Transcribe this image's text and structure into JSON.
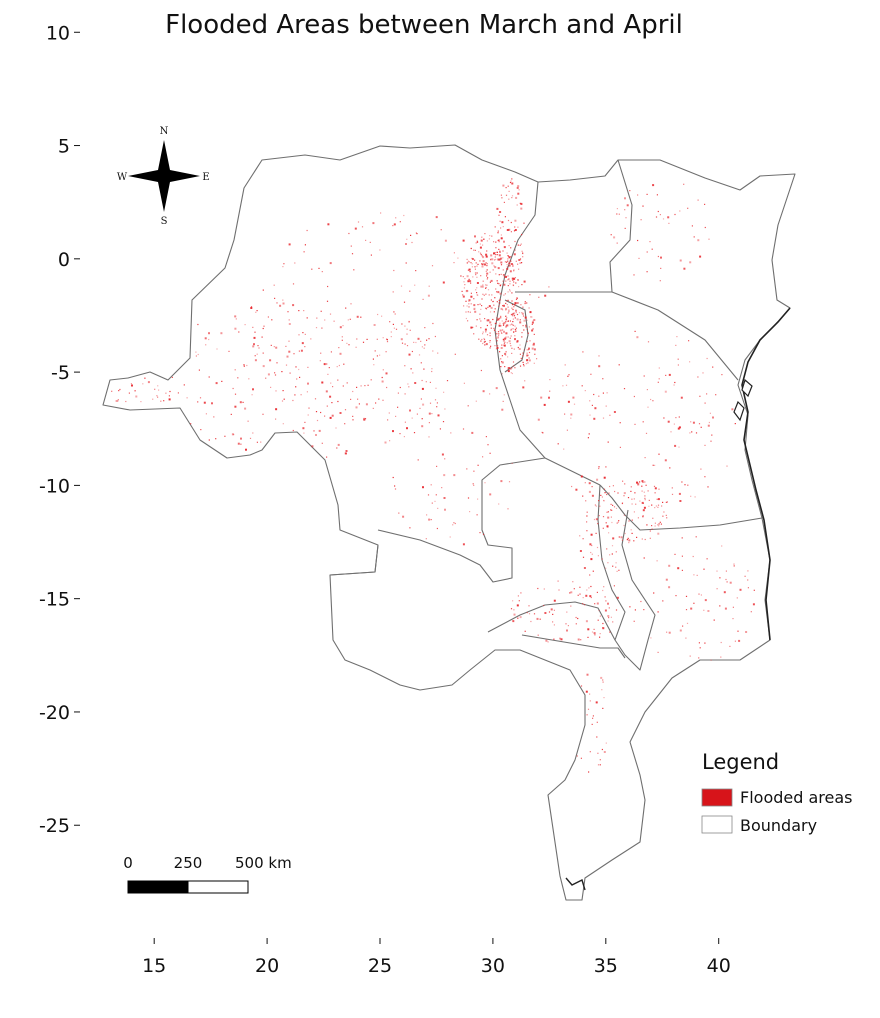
{
  "title": "Flooded Areas between March and April",
  "axes": {
    "x": {
      "range": [
        12.6,
        43.6
      ],
      "ticks": [
        15,
        20,
        25,
        30,
        35,
        40
      ],
      "labels": [
        "15",
        "20",
        "25",
        "30",
        "35",
        "40"
      ]
    },
    "y": {
      "range": [
        -28.3,
        10.1
      ],
      "ticks": [
        10,
        5,
        0,
        -5,
        -10,
        -15,
        -20,
        -25
      ],
      "labels": [
        "10",
        "5",
        "0",
        "-5",
        "-10",
        "-15",
        "-20",
        "-25"
      ]
    },
    "grid": false
  },
  "compass": {
    "n": "N",
    "s": "S",
    "e": "E",
    "w": "W"
  },
  "scale_bar": {
    "labels": [
      "0",
      "250",
      "500 km"
    ]
  },
  "legend": {
    "title": "Legend",
    "placement": "bottom-right",
    "items": [
      {
        "label": "Flooded areas",
        "color": "#d7141a"
      },
      {
        "label": "Boundary",
        "color": "#ffffff"
      }
    ]
  },
  "colors": {
    "flood": "#e8242a",
    "boundary": "#6f6f6f"
  }
}
